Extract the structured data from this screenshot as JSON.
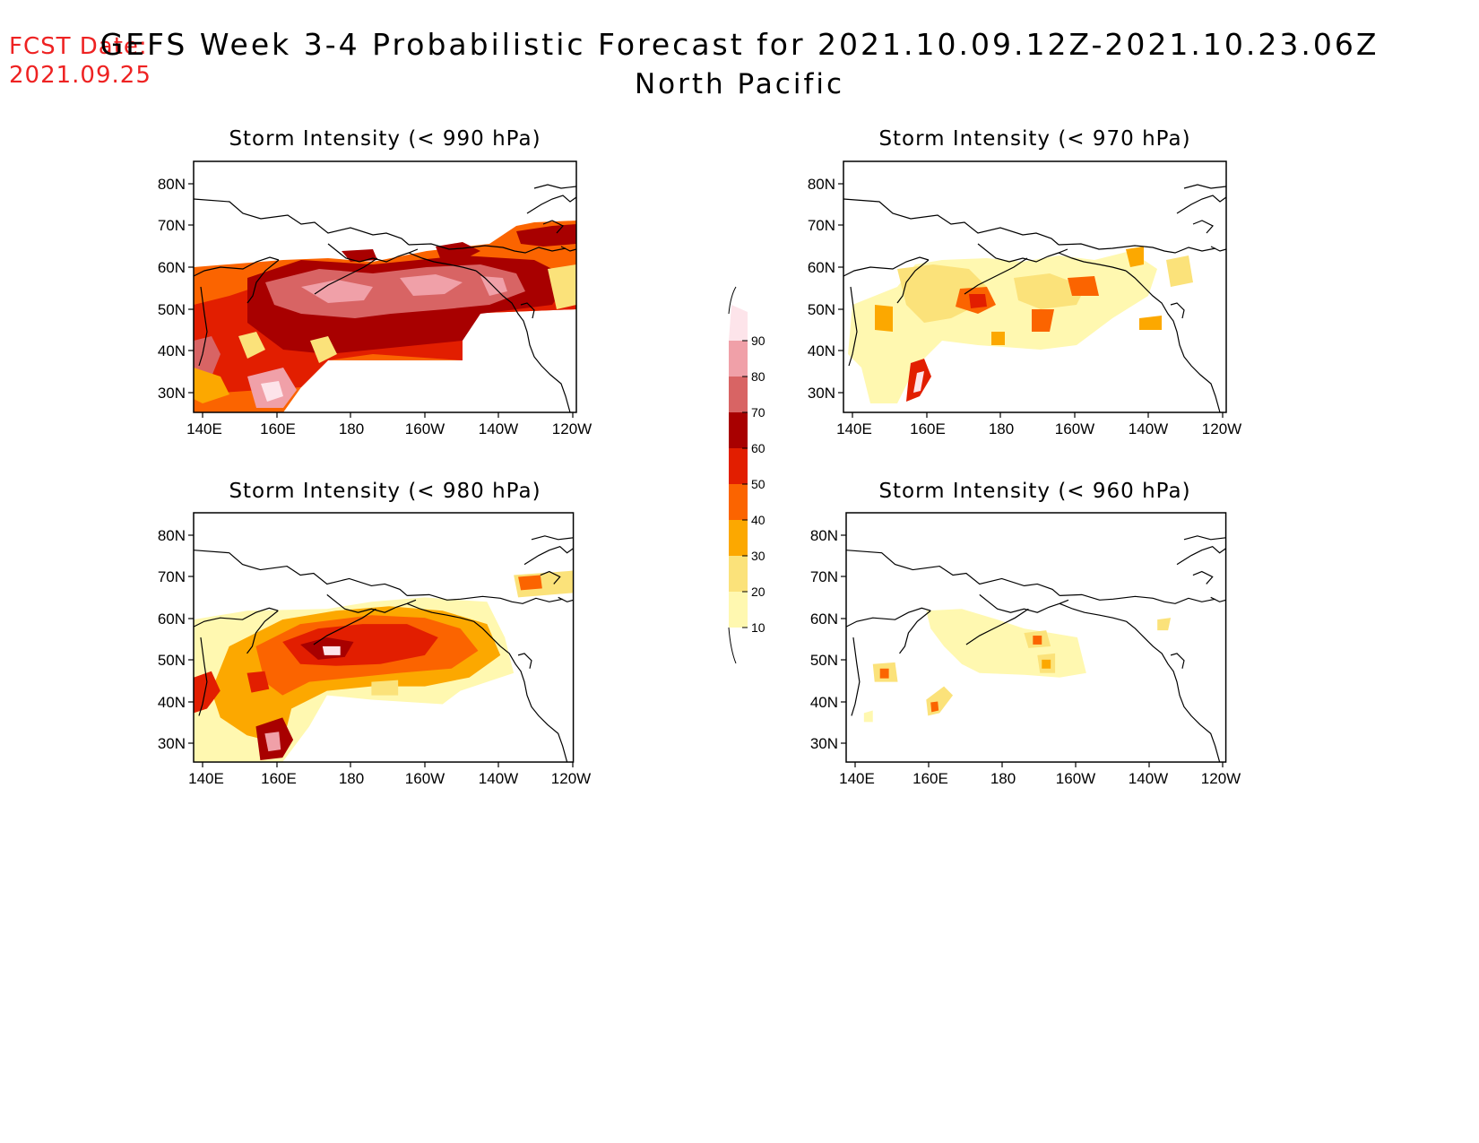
{
  "header": {
    "fcst_label": "FCST Date:",
    "fcst_date": "2021.09.25",
    "title": "GEFS Week 3-4 Probabilistic Forecast for 2021.10.09.12Z-2021.10.23.06Z",
    "region": "North Pacific"
  },
  "axes": {
    "lat_labels": [
      "80N",
      "70N",
      "60N",
      "50N",
      "40N",
      "30N"
    ],
    "lon_labels": [
      "140E",
      "160E",
      "180",
      "160W",
      "140W",
      "120W"
    ]
  },
  "panels": [
    {
      "id": "p990",
      "title": "Storm Intensity (< 990 hPa)"
    },
    {
      "id": "p970",
      "title": "Storm Intensity (< 970 hPa)"
    },
    {
      "id": "p980",
      "title": "Storm Intensity (< 980 hPa)"
    },
    {
      "id": "p960",
      "title": "Storm Intensity (< 960 hPa)"
    }
  ],
  "colorbar": {
    "levels": [
      "10",
      "20",
      "30",
      "40",
      "50",
      "60",
      "70",
      "80",
      "90"
    ],
    "colors": [
      "#fff8b0",
      "#fbe27a",
      "#fca800",
      "#fb6400",
      "#e21e00",
      "#a80000",
      "#d86464",
      "#f0a0a8",
      "#fde4ea"
    ]
  },
  "colors": {
    "forecast_date": "#ee2222",
    "coastline": "#000000"
  }
}
